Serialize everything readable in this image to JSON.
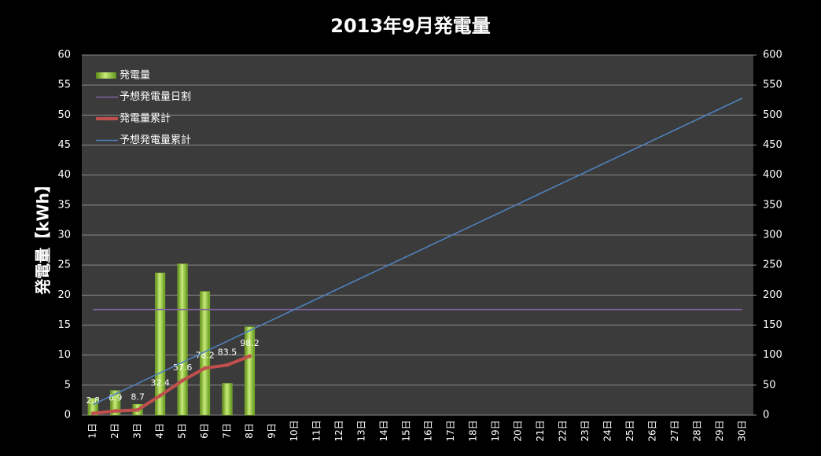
{
  "chart_data": {
    "type": "combo",
    "title": "2013年9月発電量",
    "y_label": "発電量【kWh】",
    "categories": [
      "1日",
      "2日",
      "3日",
      "4日",
      "5日",
      "6日",
      "7日",
      "8日",
      "9日",
      "10日",
      "11日",
      "12日",
      "13日",
      "14日",
      "15日",
      "16日",
      "17日",
      "18日",
      "19日",
      "20日",
      "21日",
      "22日",
      "23日",
      "24日",
      "25日",
      "26日",
      "27日",
      "28日",
      "29日",
      "30日"
    ],
    "ylim": [
      0,
      60
    ],
    "yticks": [
      0,
      5,
      10,
      15,
      20,
      25,
      30,
      35,
      40,
      45,
      50,
      55,
      60
    ],
    "y2lim": [
      0,
      600
    ],
    "y2ticks": [
      0,
      50,
      100,
      150,
      200,
      250,
      300,
      350,
      400,
      450,
      500,
      550,
      600
    ],
    "grid": true,
    "legend": "top-left",
    "series": [
      {
        "name": "発電量",
        "type": "bar",
        "color": "#8fc23a",
        "values": [
          2.8,
          4.1,
          1.8,
          23.7,
          25.2,
          20.6,
          5.3,
          14.7,
          null,
          null,
          null,
          null,
          null,
          null,
          null,
          null,
          null,
          null,
          null,
          null,
          null,
          null,
          null,
          null,
          null,
          null,
          null,
          null,
          null,
          null
        ]
      },
      {
        "name": "予想発電量日割",
        "type": "line",
        "color": "#8064a2",
        "values": [
          17.6,
          17.6,
          17.6,
          17.6,
          17.6,
          17.6,
          17.6,
          17.6,
          17.6,
          17.6,
          17.6,
          17.6,
          17.6,
          17.6,
          17.6,
          17.6,
          17.6,
          17.6,
          17.6,
          17.6,
          17.6,
          17.6,
          17.6,
          17.6,
          17.6,
          17.6,
          17.6,
          17.6,
          17.6,
          17.6
        ]
      },
      {
        "name": "発電量累計",
        "type": "line",
        "color": "#c0504d",
        "axis": "y2",
        "markers": true,
        "data_labels": true,
        "values": [
          2.8,
          6.9,
          8.7,
          32.4,
          57.6,
          78.2,
          83.5,
          98.2,
          null,
          null,
          null,
          null,
          null,
          null,
          null,
          null,
          null,
          null,
          null,
          null,
          null,
          null,
          null,
          null,
          null,
          null,
          null,
          null,
          null,
          null
        ]
      },
      {
        "name": "予想発電量累計",
        "type": "line",
        "color": "#4f81bd",
        "axis": "y2",
        "values": [
          17.6,
          35.2,
          52.8,
          70.4,
          88,
          105.6,
          123.2,
          140.8,
          158.4,
          176,
          193.6,
          211.2,
          228.8,
          246.4,
          264,
          281.6,
          299.2,
          316.8,
          334.4,
          352,
          369.6,
          387.2,
          404.8,
          422.4,
          440,
          457.6,
          475.2,
          492.8,
          510.4,
          528
        ]
      }
    ]
  }
}
